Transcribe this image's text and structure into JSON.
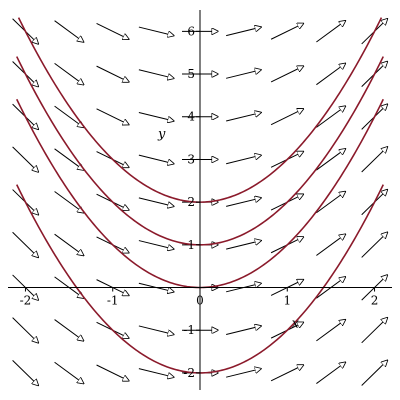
{
  "chart_data": {
    "type": "line",
    "title": "",
    "xlabel": "x",
    "ylabel": "y",
    "xlim": [
      -2.2,
      2.2
    ],
    "ylim": [
      -2.4,
      6.5
    ],
    "x_ticks": [
      {
        "value": -2,
        "label": "-2"
      },
      {
        "value": -1,
        "label": "-1"
      },
      {
        "value": 0,
        "label": "0"
      },
      {
        "value": 1,
        "label": "1"
      },
      {
        "value": 2,
        "label": "2"
      }
    ],
    "y_ticks": [
      {
        "value": -2,
        "label": "-2"
      },
      {
        "value": -1,
        "label": "-1"
      },
      {
        "value": 1,
        "label": "1"
      },
      {
        "value": 2,
        "label": "2"
      },
      {
        "value": 3,
        "label": "3"
      },
      {
        "value": 4,
        "label": "4"
      },
      {
        "value": 5,
        "label": "5"
      },
      {
        "value": 6,
        "label": "6"
      }
    ],
    "direction_field": {
      "x_values": [
        -2,
        -1.5,
        -1,
        -0.5,
        0,
        0.5,
        1,
        1.5,
        2
      ],
      "y_values": [
        -2,
        -1,
        0,
        1,
        2,
        3,
        4,
        5,
        6
      ],
      "slope": "x"
    },
    "series": [
      {
        "y_at_x0": -2,
        "x": [
          -2,
          -1.5,
          -1,
          -0.5,
          0,
          0.5,
          1,
          1.5,
          2
        ],
        "values": [
          1.8,
          0.5,
          -1.3,
          -1.7,
          -2.0,
          -1.7,
          -1.3,
          0.5,
          1.8
        ]
      },
      {
        "y_at_x0": 0,
        "x": [
          -2,
          -1.5,
          -1,
          -0.5,
          0,
          0.5,
          1,
          1.5,
          2
        ],
        "values": [
          4.0,
          2.1,
          0.7,
          0.3,
          0,
          0.3,
          0.7,
          2.1,
          4.0
        ]
      },
      {
        "y_at_x0": 1,
        "x": [
          -2,
          -1.5,
          -1,
          -0.5,
          0,
          0.5,
          1,
          1.5,
          2
        ],
        "values": [
          5.0,
          3.1,
          1.7,
          1.3,
          1,
          1.3,
          1.7,
          3.1,
          5.0
        ]
      },
      {
        "y_at_x0": 2,
        "x": [
          -2,
          -1.5,
          -1,
          -0.5,
          0,
          0.5,
          1,
          1.5,
          2
        ],
        "values": [
          6.0,
          4.1,
          2.7,
          2.3,
          2,
          2.3,
          2.7,
          4.1,
          6.0
        ]
      }
    ],
    "colors": {
      "curve": "#8b1a2b",
      "arrow": "#000000",
      "axis": "#000000"
    },
    "grid": false,
    "legend": "none"
  }
}
